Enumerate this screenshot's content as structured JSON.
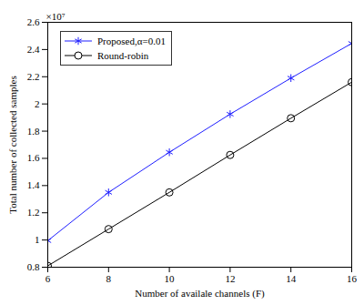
{
  "chart_data": {
    "type": "line",
    "x_label": "Number of availale channels (F)",
    "y_label": "Total number of collected samples",
    "annotations": [
      "×10⁷"
    ],
    "x": [
      6,
      8,
      10,
      12,
      14,
      16
    ],
    "series": [
      {
        "name": "Proposed,α=0.01",
        "color": "#1f1fff",
        "marker": "asterisk",
        "line_style": "solid",
        "values": [
          0.995,
          1.35,
          1.645,
          1.925,
          2.19,
          2.445
        ]
      },
      {
        "name": "Round-robin",
        "color": "#000000",
        "marker": "circle",
        "line_style": "solid",
        "values": [
          0.81,
          1.08,
          1.35,
          1.625,
          1.895,
          2.16
        ]
      }
    ],
    "xlim": [
      6,
      16
    ],
    "xticks": [
      6,
      8,
      10,
      12,
      14,
      16
    ],
    "ylim": [
      0.8,
      2.6
    ],
    "yticks": [
      0.8,
      1,
      1.2,
      1.4,
      1.6,
      1.8,
      2,
      2.2,
      2.4,
      2.6
    ],
    "grid": false,
    "legend": "upper left"
  }
}
